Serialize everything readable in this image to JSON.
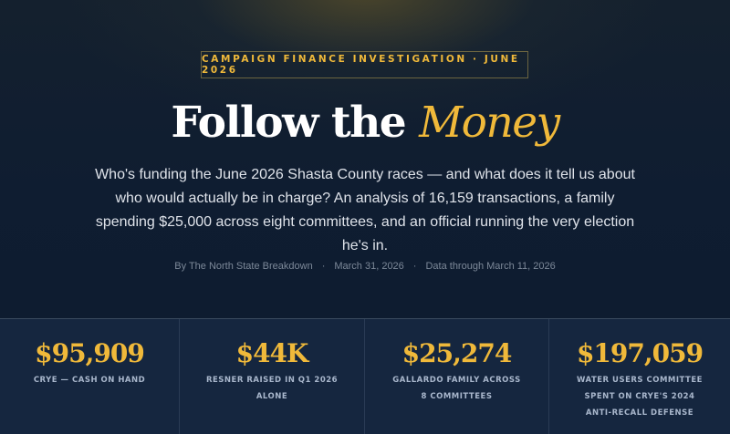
{
  "kicker": "CAMPAIGN FINANCE INVESTIGATION · JUNE 2026",
  "title": {
    "main": "Follow the ",
    "accent": "Money"
  },
  "description": "Who's funding the June 2026 Shasta County races — and what does it tell us about who would actually be in charge? An analysis of 16,159 transactions, a family spending $25,000 across eight committees, and an official running the very election he's in.",
  "byline": {
    "author": "By The North State Breakdown",
    "date": "March 31, 2026",
    "data_note": "Data through March 11, 2026",
    "separator": "·"
  },
  "stats": [
    {
      "value": "$95,909",
      "label": "CRYE — CASH ON HAND"
    },
    {
      "value": "$44K",
      "label": "RESNER RAISED IN Q1 2026 ALONE"
    },
    {
      "value": "$25,274",
      "label": "GALLARDO FAMILY ACROSS 8 COMMITTEES"
    },
    {
      "value": "$197,059",
      "label": "WATER USERS COMMITTEE SPENT ON CRYE'S 2024 ANTI-RECALL DEFENSE"
    }
  ],
  "colors": {
    "accent": "#f0b93a",
    "background": "#0f1d31",
    "stats_bg": "#15263f"
  }
}
